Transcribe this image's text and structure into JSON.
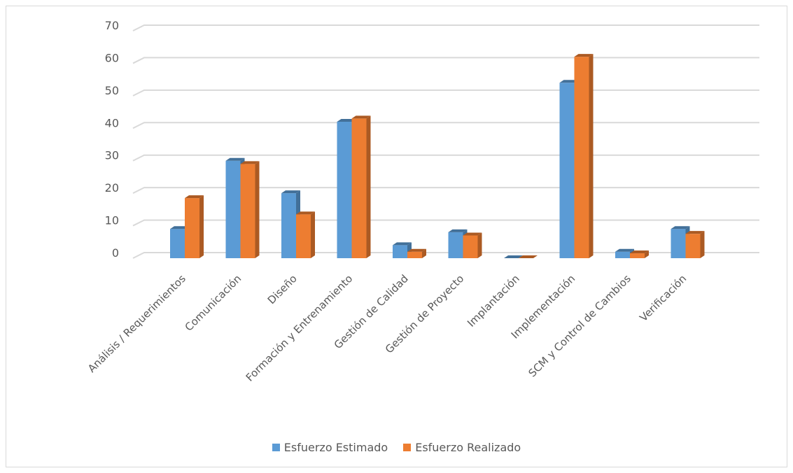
{
  "chart_data": {
    "type": "bar",
    "categories": [
      "Análisis / Requerimientos",
      "Comunicación",
      "Diseño",
      "Formación y Entrenamiento",
      "Gestión de Calidad",
      "Gestión de Proyecto",
      "Implantación",
      "Implementación",
      "SCM y Control de Cambios",
      "Verificación"
    ],
    "series": [
      {
        "name": "Esfuerzo Estimado",
        "color": "#5b9bd5",
        "values": [
          9,
          30,
          20,
          42,
          4,
          8,
          0,
          54,
          2,
          9
        ]
      },
      {
        "name": "Esfuerzo Realizado",
        "color": "#ed7d31",
        "values": [
          18.5,
          29,
          13.5,
          43,
          2,
          7,
          0,
          62,
          1.5,
          7.5
        ]
      }
    ],
    "ylim": [
      0,
      70
    ],
    "yticks": [
      "0",
      "10",
      "20",
      "30",
      "40",
      "50",
      "60",
      "70"
    ],
    "grid": true,
    "legend_position": "bottom",
    "style": "3d-clustered-column"
  }
}
